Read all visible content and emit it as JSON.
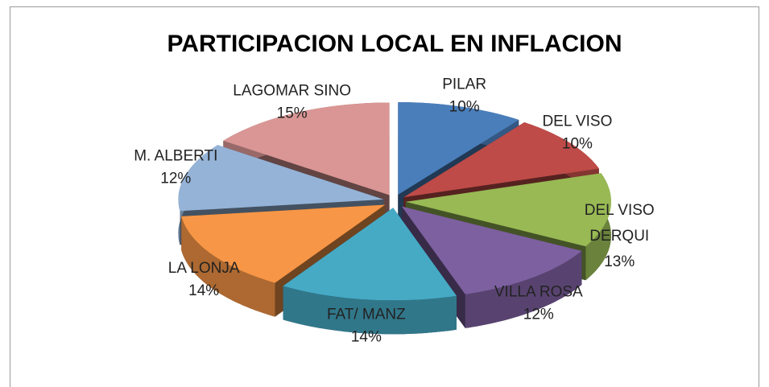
{
  "chart_data": {
    "type": "pie",
    "title": "PARTICIPACION LOCAL EN INFLACION",
    "categories": [
      "PILAR",
      "DEL VISO",
      "DEL VISO DERQUI",
      "VILLA ROSA",
      "FAT/ MANZ",
      "LA LONJA",
      "M. ALBERTI",
      "LAGOMAR SINO"
    ],
    "values": [
      10,
      10,
      13,
      12,
      14,
      14,
      12,
      15
    ],
    "value_labels": [
      "10%",
      "10%",
      "13%",
      "12%",
      "14%",
      "14%",
      "12%",
      "15%"
    ],
    "colors": [
      "#4a7ebb",
      "#be4b48",
      "#98b954",
      "#7d60a0",
      "#46aac5",
      "#f79646",
      "#95b3d7",
      "#d99694"
    ]
  }
}
